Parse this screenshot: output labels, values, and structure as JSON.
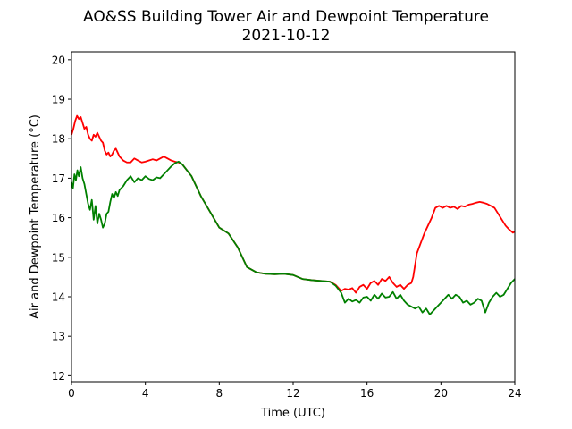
{
  "chart_data": {
    "type": "line",
    "title": "AO&SS Building Tower Air and Dewpoint Temperature",
    "subtitle": "2021-10-12",
    "xlabel": "Time (UTC)",
    "ylabel": "Air and Dewpoint Temperature (°C)",
    "xlim": [
      0,
      24
    ],
    "ylim": [
      11.85,
      20.2
    ],
    "xticks": [
      0,
      4,
      8,
      12,
      16,
      20,
      24
    ],
    "yticks": [
      12,
      13,
      14,
      15,
      16,
      17,
      18,
      19,
      20
    ],
    "grid": false,
    "legend": "none",
    "series": [
      {
        "color": "#ff0000",
        "x": [
          0,
          0.1,
          0.2,
          0.3,
          0.4,
          0.5,
          0.6,
          0.7,
          0.8,
          0.9,
          1.0,
          1.1,
          1.2,
          1.3,
          1.4,
          1.5,
          1.6,
          1.7,
          1.8,
          1.9,
          2.0,
          2.1,
          2.2,
          2.3,
          2.4,
          2.5,
          2.6,
          2.8,
          3.0,
          3.2,
          3.4,
          3.6,
          3.8,
          4.0,
          4.2,
          4.4,
          4.6,
          4.8,
          5.0,
          5.2,
          5.4,
          5.6,
          5.8,
          6.0,
          6.5,
          7.0,
          7.5,
          8.0,
          8.5,
          9.0,
          9.5,
          10.0,
          10.5,
          11.0,
          11.5,
          12.0,
          12.5,
          13.0,
          13.5,
          14.0,
          14.3,
          14.6,
          14.8,
          15.0,
          15.2,
          15.4,
          15.6,
          15.8,
          16.0,
          16.2,
          16.4,
          16.6,
          16.8,
          17.0,
          17.2,
          17.4,
          17.6,
          17.8,
          18.0,
          18.2,
          18.4,
          18.5,
          18.7,
          18.9,
          19.1,
          19.3,
          19.5,
          19.7,
          19.9,
          20.1,
          20.3,
          20.5,
          20.7,
          20.9,
          21.1,
          21.3,
          21.5,
          21.7,
          21.9,
          22.1,
          22.3,
          22.5,
          22.7,
          22.9,
          23.1,
          23.3,
          23.5,
          23.7,
          23.9,
          24.0
        ],
        "y": [
          18.1,
          18.25,
          18.45,
          18.58,
          18.5,
          18.55,
          18.4,
          18.25,
          18.3,
          18.1,
          18.0,
          17.95,
          18.1,
          18.05,
          18.15,
          18.05,
          17.95,
          17.9,
          17.7,
          17.6,
          17.65,
          17.55,
          17.6,
          17.7,
          17.75,
          17.65,
          17.55,
          17.45,
          17.4,
          17.4,
          17.5,
          17.45,
          17.4,
          17.42,
          17.45,
          17.48,
          17.45,
          17.5,
          17.55,
          17.5,
          17.45,
          17.42,
          17.4,
          17.35,
          17.05,
          16.55,
          16.15,
          15.75,
          15.6,
          15.25,
          14.75,
          14.62,
          14.58,
          14.57,
          14.58,
          14.55,
          14.45,
          14.42,
          14.4,
          14.38,
          14.3,
          14.15,
          14.2,
          14.18,
          14.22,
          14.1,
          14.25,
          14.3,
          14.2,
          14.35,
          14.4,
          14.3,
          14.45,
          14.4,
          14.5,
          14.35,
          14.25,
          14.3,
          14.2,
          14.3,
          14.35,
          14.5,
          15.1,
          15.35,
          15.6,
          15.8,
          16.0,
          16.25,
          16.3,
          16.25,
          16.3,
          16.25,
          16.28,
          16.22,
          16.3,
          16.28,
          16.33,
          16.35,
          16.38,
          16.4,
          16.38,
          16.35,
          16.3,
          16.25,
          16.1,
          15.95,
          15.8,
          15.7,
          15.62,
          15.65
        ]
      },
      {
        "color": "#008000",
        "x": [
          0,
          0.08,
          0.16,
          0.24,
          0.32,
          0.4,
          0.5,
          0.6,
          0.7,
          0.8,
          0.9,
          1.0,
          1.1,
          1.2,
          1.3,
          1.4,
          1.5,
          1.6,
          1.7,
          1.8,
          1.9,
          2.0,
          2.1,
          2.2,
          2.3,
          2.4,
          2.5,
          2.6,
          2.8,
          3.0,
          3.2,
          3.4,
          3.6,
          3.8,
          4.0,
          4.2,
          4.4,
          4.6,
          4.8,
          5.0,
          5.2,
          5.4,
          5.6,
          5.8,
          6.0,
          6.5,
          7.0,
          7.5,
          8.0,
          8.5,
          9.0,
          9.5,
          10.0,
          10.5,
          11.0,
          11.5,
          12.0,
          12.5,
          13.0,
          13.5,
          14.0,
          14.3,
          14.6,
          14.8,
          15.0,
          15.2,
          15.4,
          15.6,
          15.8,
          16.0,
          16.2,
          16.4,
          16.6,
          16.8,
          17.0,
          17.2,
          17.4,
          17.6,
          17.8,
          18.0,
          18.2,
          18.4,
          18.6,
          18.8,
          19.0,
          19.2,
          19.4,
          19.6,
          19.8,
          20.0,
          20.2,
          20.4,
          20.6,
          20.8,
          21.0,
          21.2,
          21.4,
          21.6,
          21.8,
          22.0,
          22.2,
          22.4,
          22.6,
          22.8,
          23.0,
          23.2,
          23.4,
          23.6,
          23.8,
          24.0
        ],
        "y": [
          16.9,
          16.75,
          17.1,
          16.95,
          17.2,
          17.05,
          17.28,
          17.0,
          16.85,
          16.6,
          16.35,
          16.2,
          16.45,
          15.95,
          16.3,
          15.85,
          16.1,
          15.95,
          15.75,
          15.85,
          16.1,
          16.15,
          16.4,
          16.6,
          16.5,
          16.65,
          16.55,
          16.7,
          16.8,
          16.95,
          17.05,
          16.9,
          17.0,
          16.95,
          17.05,
          16.98,
          16.95,
          17.02,
          17.0,
          17.1,
          17.2,
          17.3,
          17.38,
          17.42,
          17.35,
          17.05,
          16.55,
          16.15,
          15.75,
          15.6,
          15.25,
          14.75,
          14.62,
          14.58,
          14.57,
          14.58,
          14.55,
          14.45,
          14.42,
          14.4,
          14.38,
          14.28,
          14.1,
          13.85,
          13.95,
          13.88,
          13.92,
          13.85,
          13.98,
          14.0,
          13.9,
          14.05,
          13.95,
          14.08,
          13.98,
          14.0,
          14.12,
          13.95,
          14.05,
          13.9,
          13.8,
          13.75,
          13.7,
          13.75,
          13.6,
          13.7,
          13.55,
          13.65,
          13.75,
          13.85,
          13.95,
          14.05,
          13.95,
          14.05,
          14.0,
          13.85,
          13.9,
          13.8,
          13.85,
          13.95,
          13.9,
          13.6,
          13.85,
          14.0,
          14.1,
          14.0,
          14.05,
          14.2,
          14.35,
          14.45
        ]
      }
    ]
  }
}
